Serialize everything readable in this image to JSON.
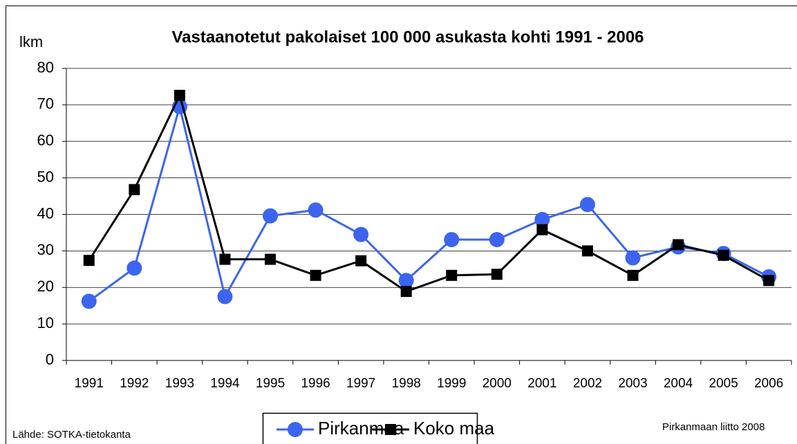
{
  "chart_data": {
    "type": "line",
    "title": "Vastaanotetut pakolaiset 100 000 asukasta kohti 1991 - 2006",
    "ylabel": "lkm",
    "source": "Lähde: SOTKA-tietokanta",
    "credit": "Pirkanmaan liitto 2008",
    "categories": [
      "1991",
      "1992",
      "1993",
      "1994",
      "1995",
      "1996",
      "1997",
      "1998",
      "1999",
      "2000",
      "2001",
      "2002",
      "2003",
      "2004",
      "2005",
      "2006"
    ],
    "series": [
      {
        "name": "Pirkanmaa",
        "color": "#3c64f0",
        "marker": "circle",
        "values": [
          16.2,
          25.3,
          69.5,
          17.5,
          39.6,
          41.2,
          34.5,
          21.9,
          33.1,
          33.1,
          38.6,
          42.7,
          28.1,
          31.1,
          29.3,
          22.9
        ]
      },
      {
        "name": "Koko maa",
        "color": "#000000",
        "marker": "square",
        "values": [
          27.4,
          46.8,
          72.6,
          27.7,
          27.7,
          23.3,
          27.3,
          18.9,
          23.3,
          23.6,
          35.8,
          30.0,
          23.3,
          31.7,
          28.8,
          21.9
        ]
      }
    ],
    "ylim": [
      0,
      80
    ],
    "yticks": [
      0,
      10,
      20,
      30,
      40,
      50,
      60,
      70,
      80
    ],
    "grid": true,
    "legend": "bottom"
  }
}
